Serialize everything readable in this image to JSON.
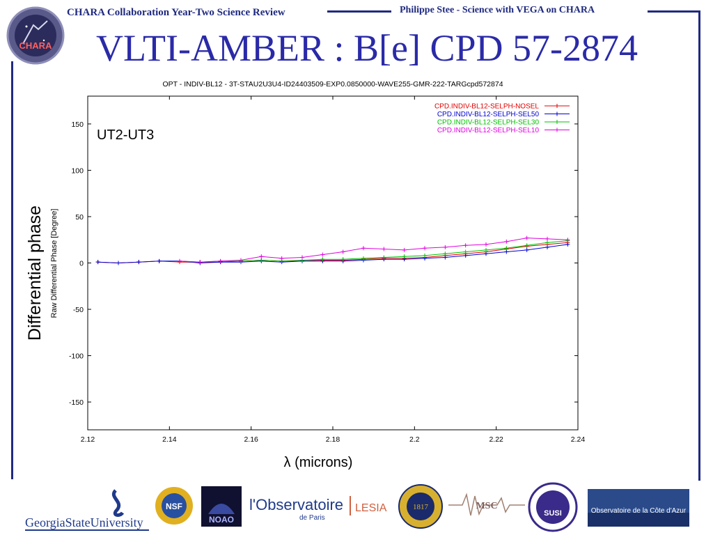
{
  "header": {
    "left_text": "CHARA Collaboration Year-Two Science Review",
    "right_text": "Philippe Stee - Science with VEGA on CHARA",
    "logo_label": "CHARA"
  },
  "slide": {
    "title": "VLTI-AMBER : B[e] CPD 57-2874",
    "side_label": "Differential phase"
  },
  "chart_data": {
    "type": "line",
    "title": "OPT - INDIV-BL12 - 3T-STAU2U3U4-ID24403509-EXP0.0850000-WAVE255-GMR-222-TARGcpd572874",
    "annotation": "UT2-UT3",
    "xlabel": "λ (microns)",
    "ylabel": "Raw Differential Phase [Degree]",
    "xlim": [
      2.12,
      2.24
    ],
    "ylim": [
      -180,
      180
    ],
    "x_ticks": [
      2.12,
      2.14,
      2.16,
      2.18,
      2.2,
      2.22,
      2.24
    ],
    "x_tick_labels": [
      "2.12",
      "2.14",
      "2.16",
      "2.18",
      "2.2",
      "2.22",
      "2.24"
    ],
    "y_ticks": [
      -150,
      -100,
      -50,
      0,
      50,
      100,
      150
    ],
    "y_tick_labels": [
      "-150",
      "-100",
      "-50",
      "0",
      "50",
      "100",
      "150"
    ],
    "grid": false,
    "legend_position": "top-right",
    "x": [
      2.1225,
      2.1275,
      2.1325,
      2.1375,
      2.1425,
      2.1475,
      2.1525,
      2.1575,
      2.1625,
      2.1675,
      2.1725,
      2.1775,
      2.1825,
      2.1875,
      2.1925,
      2.1975,
      2.2025,
      2.2075,
      2.2125,
      2.2175,
      2.2225,
      2.2275,
      2.2325,
      2.2375
    ],
    "series": [
      {
        "name": "CPD.INDIV-BL12-SELPH-NOSEL",
        "color": "#e00000",
        "values": [
          1,
          0,
          1,
          2,
          1,
          1,
          1,
          2,
          3,
          2,
          2,
          3,
          3,
          4,
          5,
          5,
          6,
          8,
          10,
          12,
          15,
          18,
          20,
          22
        ]
      },
      {
        "name": "CPD.INDIV-BL12-SELPH-SEL50",
        "color": "#0000d0",
        "values": [
          1,
          0,
          1,
          2,
          2,
          0,
          1,
          1,
          2,
          1,
          2,
          2,
          2,
          3,
          4,
          4,
          5,
          6,
          8,
          10,
          12,
          14,
          17,
          20
        ]
      },
      {
        "name": "CPD.INDIV-BL12-SELPH-SEL30",
        "color": "#00c000",
        "values": [
          null,
          null,
          null,
          null,
          2,
          1,
          2,
          2,
          3,
          2,
          3,
          4,
          4,
          5,
          6,
          7,
          8,
          10,
          12,
          14,
          16,
          19,
          22,
          24
        ]
      },
      {
        "name": "CPD.INDIV-BL12-SELPH-SEL10",
        "color": "#e000e0",
        "values": [
          null,
          null,
          null,
          null,
          2,
          1,
          2,
          3,
          7,
          5,
          6,
          9,
          12,
          16,
          15,
          14,
          16,
          17,
          19,
          20,
          23,
          27,
          26,
          25
        ]
      }
    ]
  },
  "footer": {
    "logos": [
      {
        "name": "georgia-state-logo",
        "text": "GeorgiaStateUniversity"
      },
      {
        "name": "nsf-logo",
        "text": "NSF"
      },
      {
        "name": "noao-logo",
        "text": "NOAO"
      },
      {
        "name": "observatoire-paris-logo",
        "text": "l'Observatoire",
        "subtext": "de Paris"
      },
      {
        "name": "lesia-logo",
        "text": "LESIA"
      },
      {
        "name": "university-michigan-logo",
        "text": "1817"
      },
      {
        "name": "msc-logo",
        "text": "MSC"
      },
      {
        "name": "susi-logo",
        "text": "SUSI"
      },
      {
        "name": "observatoire-cote-azur-logo",
        "text": "Observatoire de la Côte d'Azur"
      }
    ]
  },
  "colors": {
    "frame": "#1f2a80",
    "title": "#2a2aa8"
  }
}
